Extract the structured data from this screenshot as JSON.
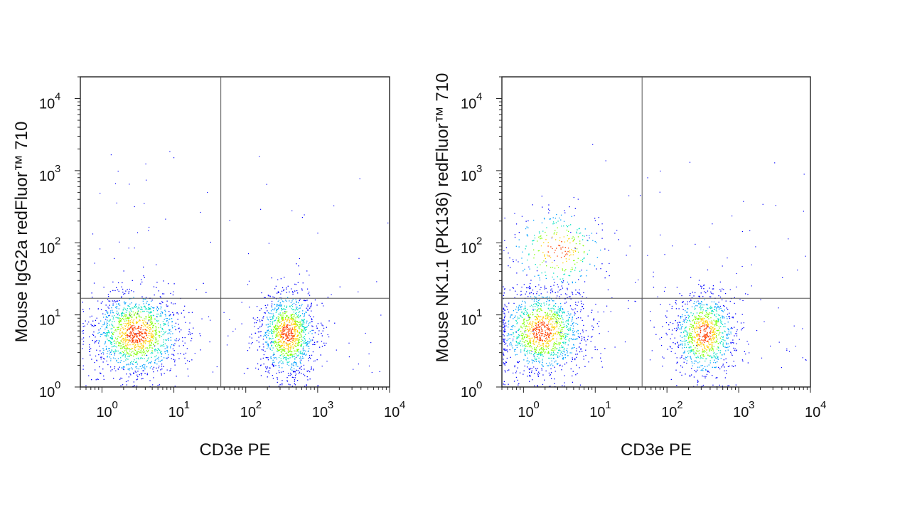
{
  "chart_data": [
    {
      "type": "scatter",
      "subtype": "flow-cytometry-density-dot-plot",
      "xlabel": "CD3e PE",
      "ylabel": "Mouse IgG2a redFluor™ 710",
      "x_scale": "log",
      "y_scale": "log",
      "xlim": [
        0.5,
        10000
      ],
      "ylim": [
        1,
        20000
      ],
      "x_ticks": [
        1,
        10,
        100,
        1000,
        10000
      ],
      "y_ticks": [
        1,
        10,
        100,
        1000,
        10000
      ],
      "tick_base": "10",
      "x_tick_exponents": [
        "0",
        "1",
        "2",
        "3",
        "4"
      ],
      "y_tick_exponents": [
        "0",
        "1",
        "2",
        "3",
        "4"
      ],
      "quadrant_gate": {
        "x": 45,
        "y": 17
      },
      "populations": [
        {
          "x_center": 3,
          "y_center": 5.5,
          "x_spread_decades": 0.32,
          "y_spread_decades": 0.3,
          "relative_events": 0.55
        },
        {
          "x_center": 380,
          "y_center": 5.5,
          "x_spread_decades": 0.2,
          "y_spread_decades": 0.3,
          "relative_events": 0.45
        }
      ],
      "density_colors": [
        "#0000ff",
        "#00a0ff",
        "#00e0c0",
        "#7fff00",
        "#ffd000",
        "#ff4000"
      ]
    },
    {
      "type": "scatter",
      "subtype": "flow-cytometry-density-dot-plot",
      "xlabel": "CD3e PE",
      "ylabel": "Mouse NK1.1 (PK136) redFluor™ 710",
      "x_scale": "log",
      "y_scale": "log",
      "xlim": [
        0.5,
        10000
      ],
      "ylim": [
        1,
        20000
      ],
      "x_ticks": [
        1,
        10,
        100,
        1000,
        10000
      ],
      "y_ticks": [
        1,
        10,
        100,
        1000,
        10000
      ],
      "tick_base": "10",
      "x_tick_exponents": [
        "0",
        "1",
        "2",
        "3",
        "4"
      ],
      "y_tick_exponents": [
        "0",
        "1",
        "2",
        "3",
        "4"
      ],
      "quadrant_gate": {
        "x": 45,
        "y": 17
      },
      "populations": [
        {
          "x_center": 1.8,
          "y_center": 6,
          "x_spread_decades": 0.3,
          "y_spread_decades": 0.3,
          "relative_events": 0.5
        },
        {
          "x_center": 3,
          "y_center": 80,
          "x_spread_decades": 0.35,
          "y_spread_decades": 0.3,
          "relative_events": 0.12
        },
        {
          "x_center": 330,
          "y_center": 5.5,
          "x_spread_decades": 0.22,
          "y_spread_decades": 0.3,
          "relative_events": 0.38
        }
      ],
      "density_colors": [
        "#0000ff",
        "#00a0ff",
        "#00e0c0",
        "#7fff00",
        "#ffd000",
        "#ff4000"
      ]
    }
  ]
}
